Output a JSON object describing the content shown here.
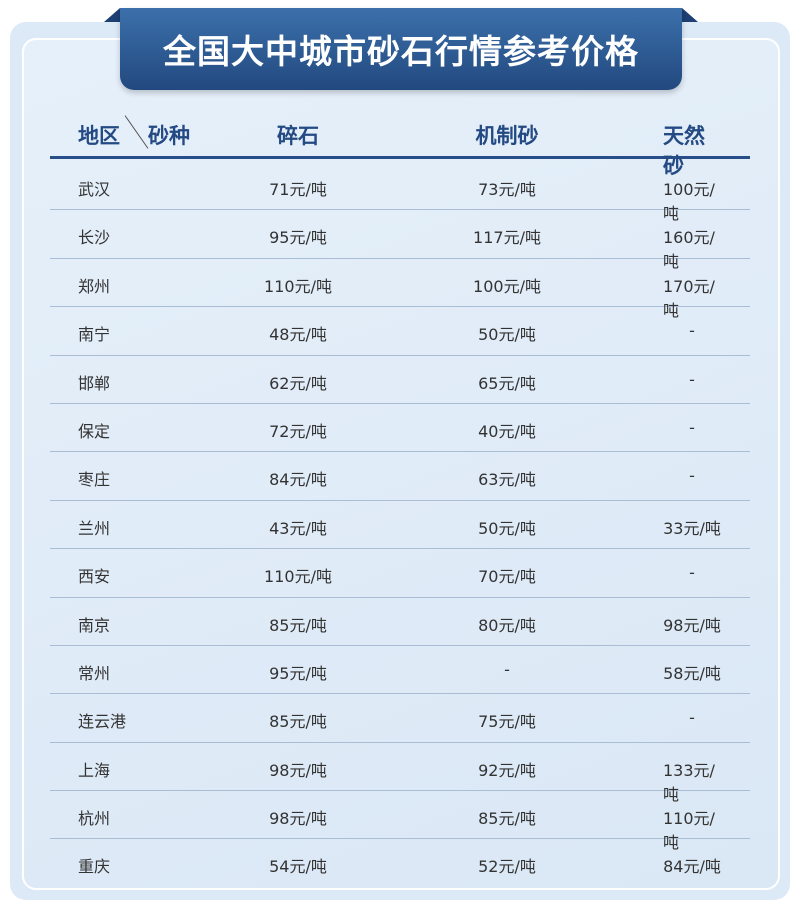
{
  "title": "全国大中城市砂石行情参考价格",
  "header": {
    "region": "地区",
    "type": "砂种",
    "columns": [
      "碎石",
      "机制砂",
      "天然砂"
    ]
  },
  "rows": [
    [
      "武汉",
      "71元/吨",
      "73元/吨",
      "100元/吨"
    ],
    [
      "长沙",
      "95元/吨",
      "117元/吨",
      "160元/吨"
    ],
    [
      "郑州",
      "110元/吨",
      "100元/吨",
      "170元/吨"
    ],
    [
      "南宁",
      "48元/吨",
      "50元/吨",
      "-"
    ],
    [
      "邯郸",
      "62元/吨",
      "65元/吨",
      "-"
    ],
    [
      "保定",
      "72元/吨",
      "40元/吨",
      "-"
    ],
    [
      "枣庄",
      "84元/吨",
      "63元/吨",
      "-"
    ],
    [
      "兰州",
      "43元/吨",
      "50元/吨",
      "33元/吨"
    ],
    [
      "西安",
      "110元/吨",
      "70元/吨",
      "-"
    ],
    [
      "南京",
      "85元/吨",
      "80元/吨",
      "98元/吨"
    ],
    [
      "常州",
      "95元/吨",
      "-",
      "58元/吨"
    ],
    [
      "连云港",
      "85元/吨",
      "75元/吨",
      "-"
    ],
    [
      "上海",
      "98元/吨",
      "92元/吨",
      "133元/吨"
    ],
    [
      "杭州",
      "98元/吨",
      "85元/吨",
      "110元/吨"
    ],
    [
      "重庆",
      "54元/吨",
      "52元/吨",
      "84元/吨"
    ]
  ],
  "colors": {
    "banner": "#2d5c97",
    "header_text": "#244a84",
    "background": "#dce9f6"
  }
}
